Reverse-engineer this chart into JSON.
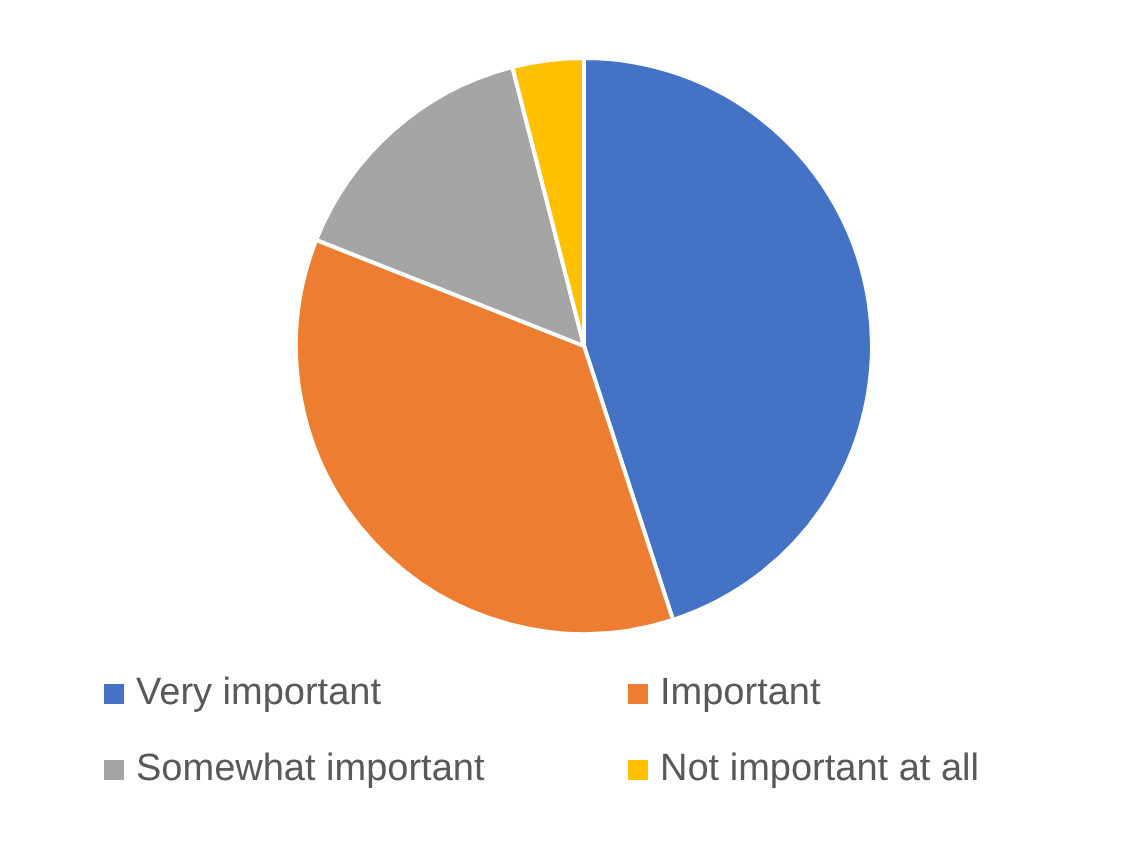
{
  "chart_data": {
    "type": "pie",
    "categories": [
      "Very important",
      "Important",
      "Somewhat important",
      "Not important at all"
    ],
    "values": [
      45,
      36,
      15,
      4
    ],
    "colors": [
      "#4472c4",
      "#ed7d31",
      "#a5a5a5",
      "#ffc000"
    ],
    "legend": "bottom"
  }
}
